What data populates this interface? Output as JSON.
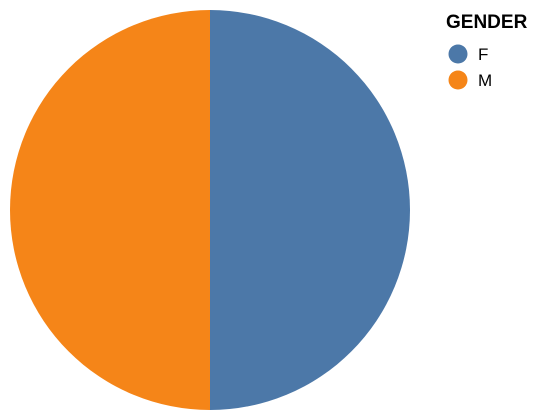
{
  "chart_data": {
    "type": "pie",
    "legend": {
      "title": "GENDER",
      "position": "top-right"
    },
    "slices": [
      {
        "label": "F",
        "value": 50,
        "color": "#4c78a8"
      },
      {
        "label": "M",
        "value": 50,
        "color": "#f58518"
      }
    ]
  }
}
